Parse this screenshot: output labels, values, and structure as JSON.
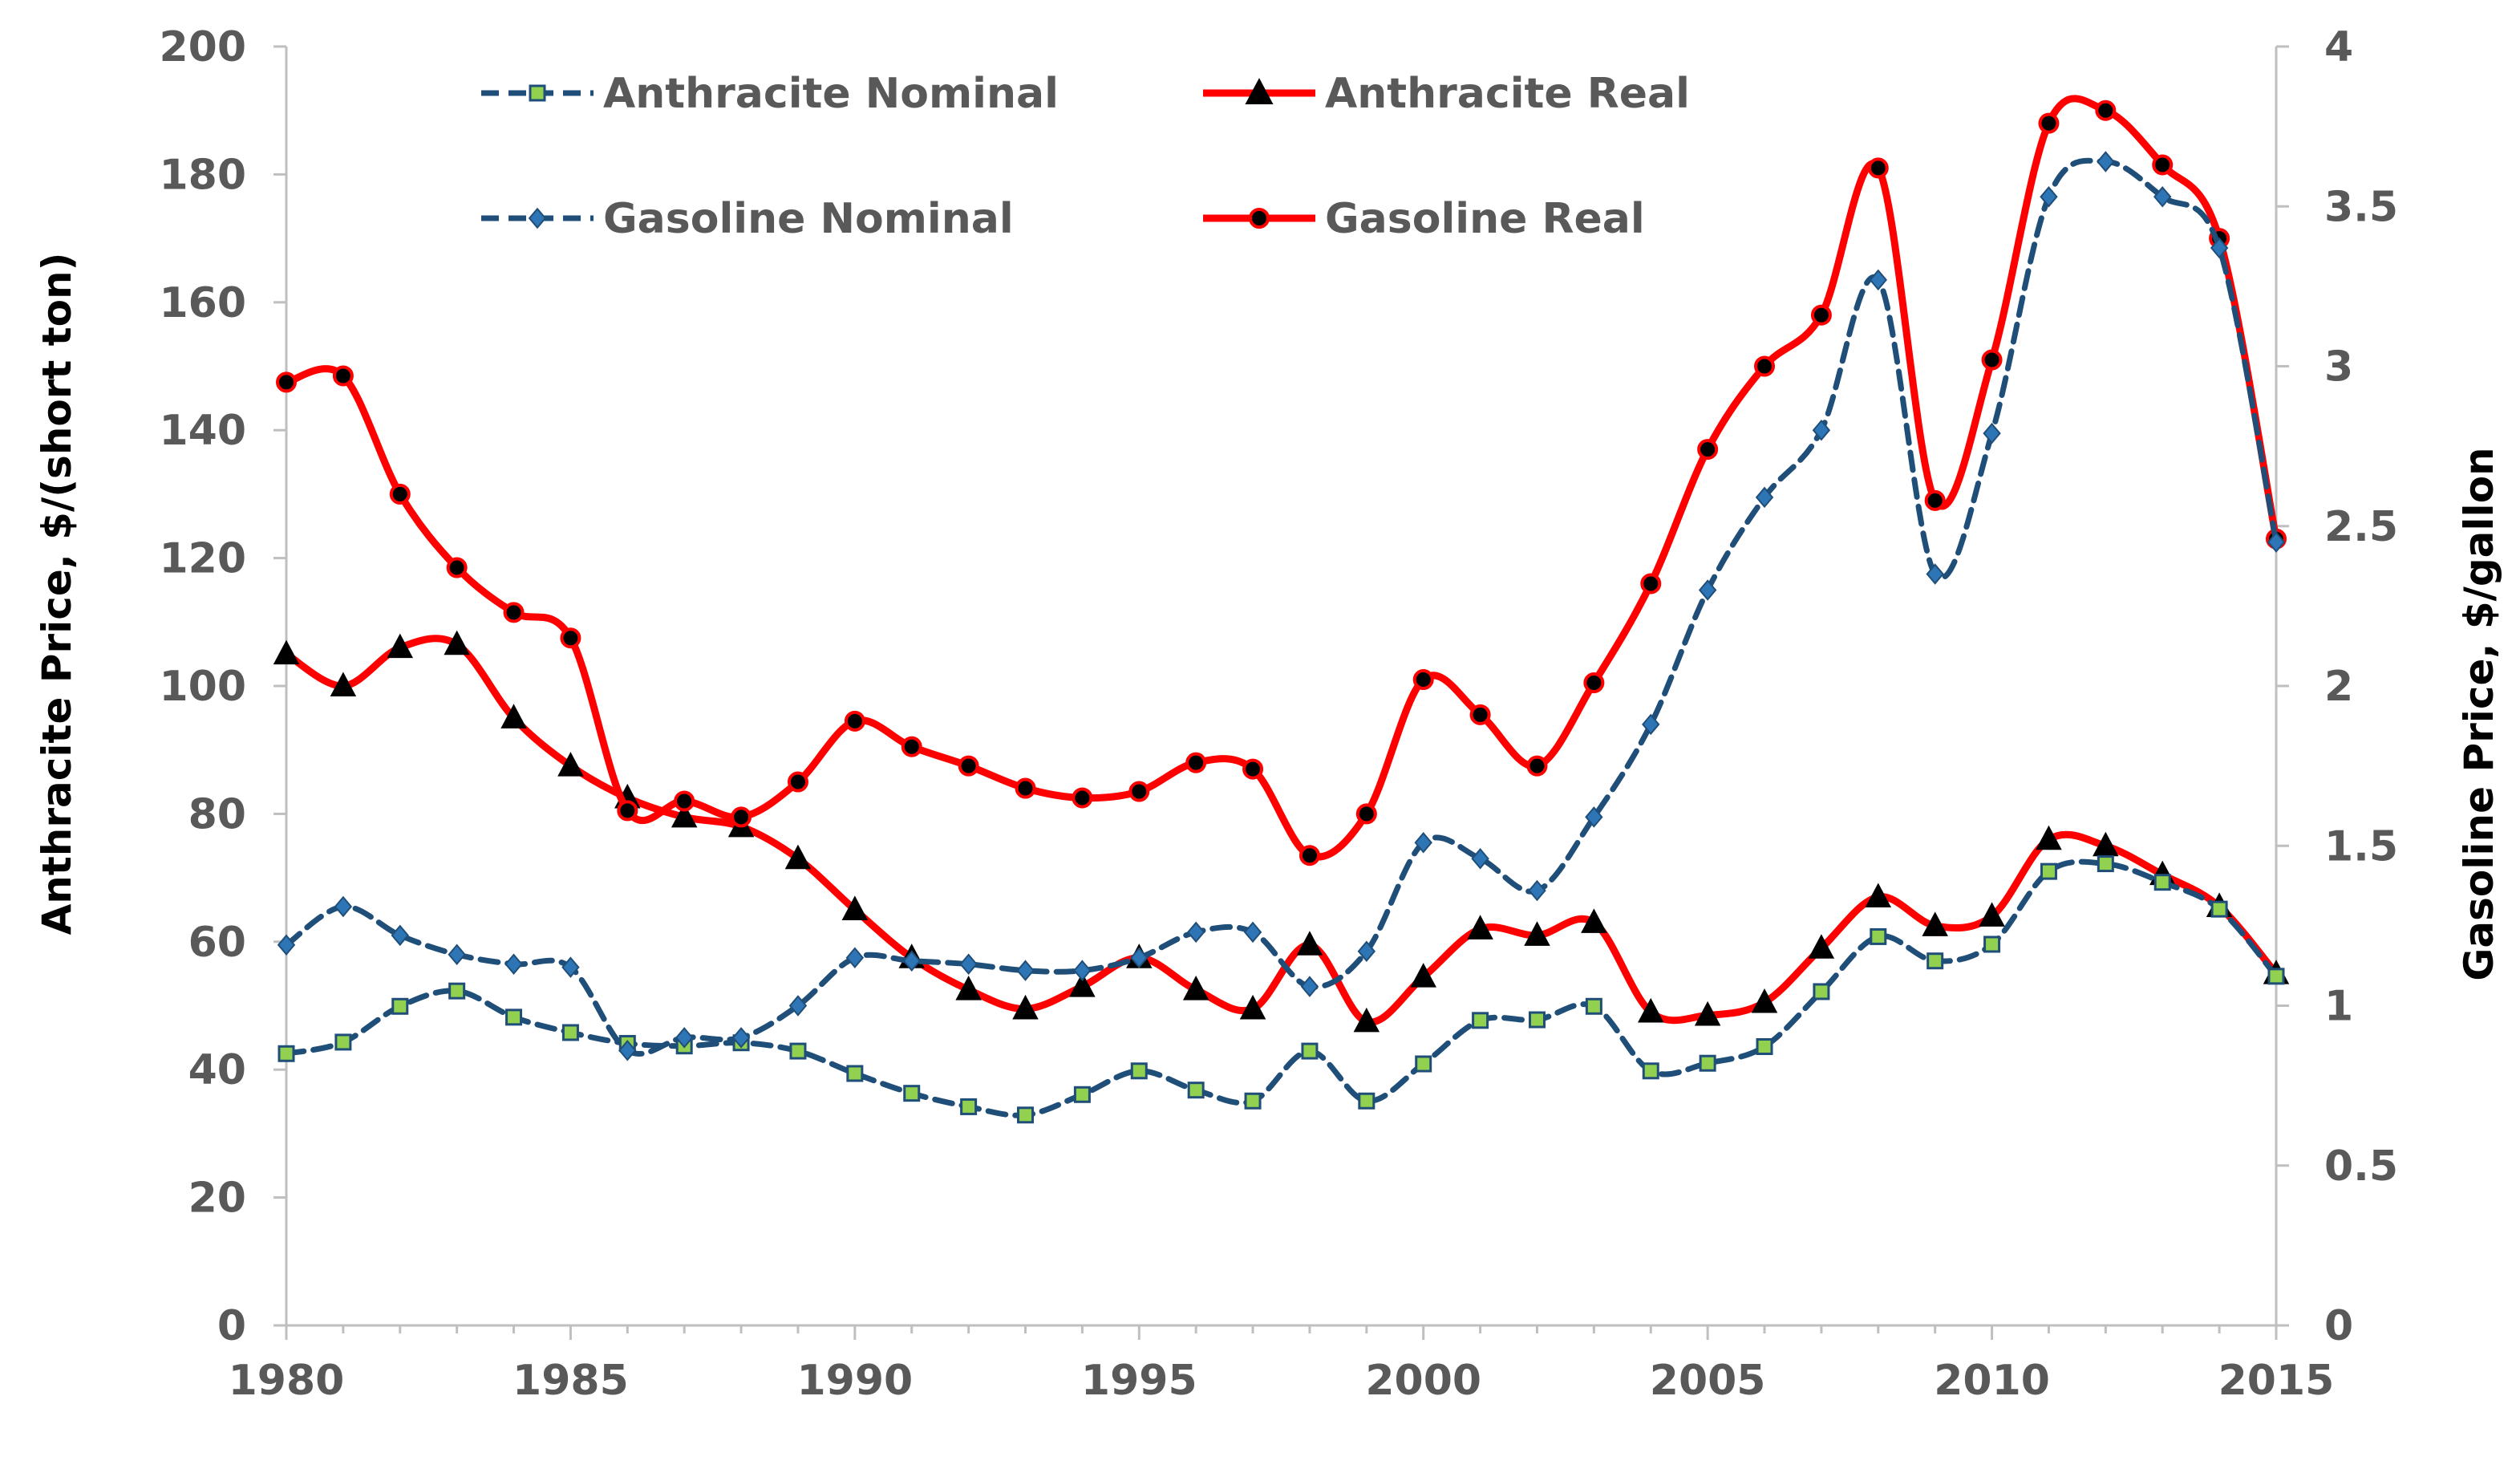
{
  "chart_data": {
    "type": "line",
    "title": "",
    "xlabel": "",
    "ylabel": "Anthracite Price, $/(short ton)",
    "y2label": "Gasoline Price, $/gallon",
    "x": [
      1980,
      1981,
      1982,
      1983,
      1984,
      1985,
      1986,
      1987,
      1988,
      1989,
      1990,
      1991,
      1992,
      1993,
      1994,
      1995,
      1996,
      1997,
      1998,
      1999,
      2000,
      2001,
      2002,
      2003,
      2004,
      2005,
      2006,
      2007,
      2008,
      2009,
      2010,
      2011,
      2012,
      2013,
      2014,
      2015
    ],
    "xlim": [
      1980,
      2015
    ],
    "ylim": [
      0,
      200
    ],
    "y2lim": [
      0,
      4
    ],
    "x_ticks": [
      "1980",
      "1985",
      "1990",
      "1995",
      "2000",
      "2005",
      "2010",
      "2015"
    ],
    "y_ticks": [
      "0",
      "20",
      "40",
      "60",
      "80",
      "100",
      "120",
      "140",
      "160",
      "180",
      "200"
    ],
    "y2_ticks": [
      "0",
      "0.5",
      "1",
      "1.5",
      "2",
      "2.5",
      "3",
      "3.5",
      "4"
    ],
    "legend_position": "top",
    "series": [
      {
        "name": "Anthracite Nominal",
        "axis": "left",
        "color": "#1f4e79",
        "line_style": "dashed",
        "marker": "square",
        "marker_color": "#92d050",
        "values": [
          42.5,
          44.3,
          49.9,
          52.3,
          48.2,
          45.8,
          44.1,
          43.7,
          44.2,
          42.9,
          39.4,
          36.3,
          34.2,
          32.9,
          36.1,
          39.8,
          36.8,
          35.1,
          42.9,
          35.1,
          40.9,
          47.7,
          47.8,
          49.9,
          39.8,
          41,
          43.6,
          52.2,
          60.8,
          57,
          59.6,
          71,
          72.2,
          69.3,
          65.1,
          54.6
        ]
      },
      {
        "name": "Anthracite Real",
        "axis": "left",
        "color": "#ff0000",
        "line_style": "solid",
        "marker": "triangle",
        "marker_color": "#000000",
        "values": [
          105,
          100,
          106,
          106.5,
          95,
          87.5,
          82.5,
          79.5,
          78,
          73,
          65,
          57.5,
          52.5,
          49.5,
          53,
          57.5,
          52.5,
          49.5,
          59.5,
          47.5,
          54.5,
          62,
          61,
          63,
          49,
          48.5,
          50.5,
          59,
          67,
          62.5,
          64,
          76,
          75,
          70.5,
          65.5,
          55
        ]
      },
      {
        "name": "Gasoline Nominal",
        "axis": "right",
        "color": "#1f4e79",
        "line_style": "dashed",
        "marker": "diamond",
        "marker_color": "#2e75b6",
        "values": [
          1.19,
          1.31,
          1.22,
          1.16,
          1.13,
          1.12,
          0.86,
          0.9,
          0.9,
          1,
          1.15,
          1.14,
          1.13,
          1.11,
          1.11,
          1.15,
          1.23,
          1.23,
          1.06,
          1.17,
          1.51,
          1.46,
          1.36,
          1.59,
          1.88,
          2.3,
          2.59,
          2.8,
          3.27,
          2.35,
          2.79,
          3.53,
          3.64,
          3.53,
          3.37,
          2.45
        ]
      },
      {
        "name": "Gasoline Real",
        "axis": "right",
        "color": "#ff0000",
        "line_style": "solid",
        "marker": "circle",
        "marker_color": "#000000",
        "values": [
          2.95,
          2.97,
          2.6,
          2.37,
          2.23,
          2.15,
          1.61,
          1.64,
          1.59,
          1.7,
          1.89,
          1.81,
          1.75,
          1.68,
          1.65,
          1.67,
          1.76,
          1.74,
          1.47,
          1.6,
          2.02,
          1.91,
          1.75,
          2.01,
          2.32,
          2.74,
          3,
          3.16,
          3.62,
          2.58,
          3.02,
          3.76,
          3.8,
          3.63,
          3.4,
          2.46
        ]
      }
    ]
  }
}
